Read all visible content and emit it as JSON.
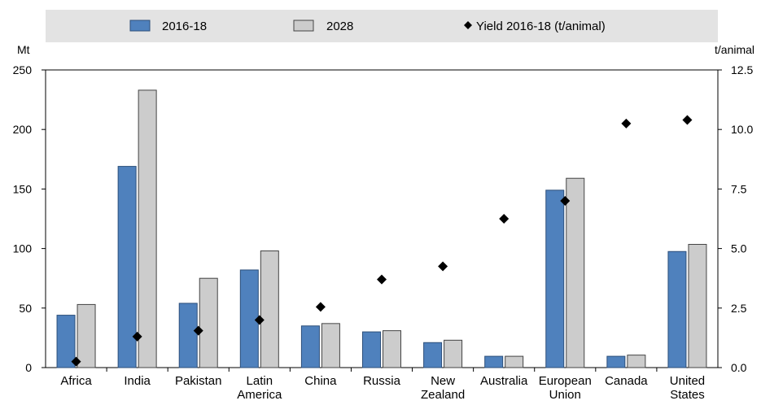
{
  "chart_data": {
    "type": "bar",
    "categories": [
      [
        "Africa"
      ],
      [
        "India"
      ],
      [
        "Pakistan"
      ],
      [
        "Latin",
        "America"
      ],
      [
        "China"
      ],
      [
        "Russia"
      ],
      [
        "New",
        "Zealand"
      ],
      [
        "Australia"
      ],
      [
        "European",
        "Union"
      ],
      [
        "Canada"
      ],
      [
        "United",
        "States"
      ]
    ],
    "series": [
      {
        "name": "2016-18",
        "axis": "left",
        "mark": "bar",
        "color": "#4f81bd",
        "values": [
          44,
          169,
          54,
          82,
          35,
          30,
          21,
          9.5,
          149,
          9.5,
          97.5
        ]
      },
      {
        "name": "2028",
        "axis": "left",
        "mark": "bar",
        "color": "#cccccc",
        "values": [
          53,
          233,
          75,
          98,
          37,
          31,
          23,
          9.5,
          159,
          10.5,
          103.5
        ]
      },
      {
        "name": "Yield 2016-18 (t/animal)",
        "axis": "right",
        "mark": "diamond",
        "color": "#000000",
        "values": [
          0.25,
          1.3,
          1.55,
          2.0,
          2.55,
          3.7,
          4.25,
          6.25,
          7.0,
          10.25,
          10.4
        ]
      }
    ],
    "ylabel": "Mt",
    "ylabel_right": "t/animal",
    "ylim": [
      0,
      250
    ],
    "ylim_right": [
      0,
      12.5
    ],
    "yticks": [
      0,
      50,
      100,
      150,
      200,
      250
    ],
    "yticks_right": [
      "0.0",
      "2.5",
      "5.0",
      "7.5",
      "10.0",
      "12.5"
    ],
    "legend_position": "top",
    "grid": false
  }
}
